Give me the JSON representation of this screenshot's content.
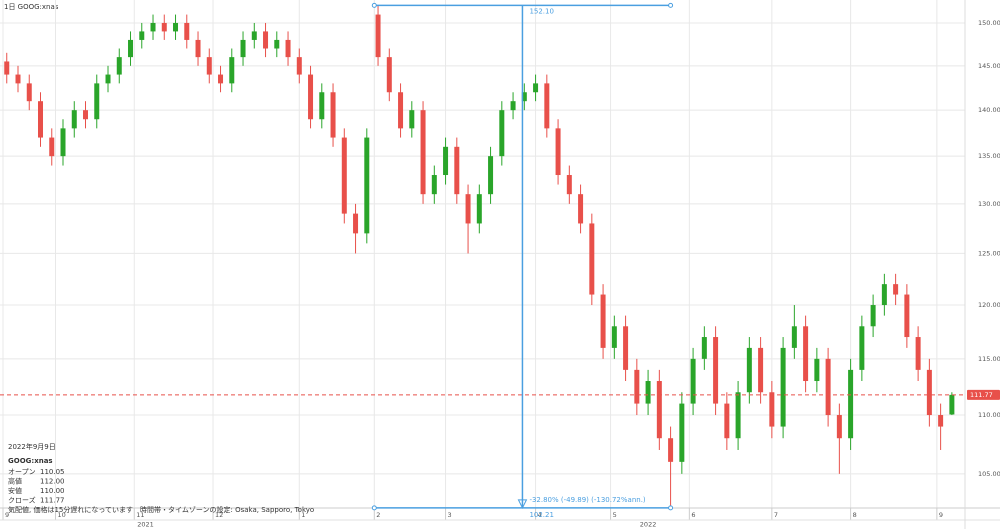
{
  "header": {
    "title": "1日 GOOG:xnas"
  },
  "info": {
    "date": "2022年9月9日",
    "symbol": "GOOG:xnas",
    "rows": [
      [
        "オープン",
        "110.05"
      ],
      [
        "高値",
        "112.00"
      ],
      [
        "安値",
        "110.00"
      ],
      [
        "クローズ",
        "111.77"
      ]
    ],
    "note": "気配値, 価格は15分遅れになっています　時間帯・タイムゾーンの設定: Osaka, Sapporo, Tokyo"
  },
  "chart_data": {
    "type": "candlestick",
    "log_scale": true,
    "grid": true,
    "up_color": "#2aa52a",
    "down_color": "#e8504a",
    "x": [
      1,
      4,
      7,
      10,
      13,
      16,
      19,
      22,
      25,
      28,
      31,
      34,
      37,
      40,
      43,
      46,
      49,
      52,
      55,
      58,
      61,
      64,
      67,
      70,
      73,
      76,
      79,
      82,
      85,
      88,
      91,
      94,
      97,
      100,
      103,
      106,
      109,
      112,
      115,
      118,
      121,
      124,
      127,
      130,
      133,
      136,
      139,
      142,
      145,
      148,
      151,
      154,
      157,
      160,
      163,
      166,
      169,
      172,
      175,
      178,
      181,
      184,
      187,
      190,
      193,
      196,
      199,
      202,
      205,
      208,
      211,
      214,
      217,
      220,
      223,
      226,
      229,
      232,
      235,
      238,
      241,
      244,
      247,
      250,
      253
    ],
    "open": [
      145.5,
      144,
      143,
      141,
      137,
      135,
      138,
      140,
      139,
      143,
      144,
      146,
      148,
      149,
      150,
      149,
      150,
      148,
      146,
      144,
      143,
      146,
      148,
      149,
      147,
      148,
      146,
      144,
      139,
      142,
      137,
      129,
      127,
      151,
      146,
      142,
      138,
      140,
      131,
      133,
      136,
      131,
      128,
      131,
      135,
      140,
      141,
      142,
      143,
      138,
      133,
      131,
      128,
      121,
      116,
      118,
      114,
      111,
      113,
      108,
      106,
      111,
      115,
      117,
      111,
      108,
      112,
      116,
      112,
      109,
      116,
      118,
      113,
      115,
      110,
      108,
      114,
      118,
      120,
      122,
      121,
      117,
      114,
      110,
      110.05
    ],
    "high": [
      146.5,
      145,
      144,
      142,
      138,
      139,
      141,
      141,
      144,
      145,
      147,
      149,
      150,
      151,
      151,
      151,
      151,
      149,
      147,
      145,
      147,
      149,
      150,
      150,
      149,
      149,
      147,
      145,
      143,
      143,
      138,
      130,
      138,
      152.1,
      147,
      143,
      141,
      141,
      134,
      137,
      137,
      132,
      132,
      136,
      141,
      142,
      143,
      144,
      144,
      139,
      134,
      132,
      129,
      122,
      119,
      119,
      115,
      114,
      114,
      109,
      112,
      116,
      118,
      118,
      112,
      113,
      117,
      117,
      113,
      117,
      120,
      119,
      116,
      116,
      111,
      115,
      119,
      121,
      123,
      123,
      122,
      118,
      115,
      111,
      112
    ],
    "low": [
      143,
      142,
      140,
      136,
      134,
      134,
      137,
      138,
      138,
      142,
      143,
      145,
      147,
      148,
      148,
      148,
      147,
      145,
      143,
      142,
      142,
      145,
      147,
      146,
      146,
      145,
      143,
      138,
      138,
      136,
      128,
      125,
      126,
      145,
      141,
      137,
      137,
      130,
      130,
      132,
      130,
      125,
      127,
      130,
      134,
      139,
      140,
      141,
      137,
      132,
      130,
      127,
      120,
      115,
      115,
      113,
      110,
      110,
      107,
      102.21,
      105,
      110,
      114,
      110,
      107,
      107,
      111,
      111,
      108,
      108,
      115,
      112,
      112,
      109,
      105,
      107,
      113,
      117,
      119,
      120,
      116,
      113,
      109,
      107,
      110
    ],
    "close": [
      144,
      143,
      141,
      137,
      135,
      138,
      140,
      139,
      143,
      144,
      146,
      148,
      149,
      150,
      149,
      150,
      148,
      146,
      144,
      143,
      146,
      148,
      149,
      147,
      148,
      146,
      144,
      139,
      142,
      137,
      129,
      127,
      137,
      146,
      142,
      138,
      140,
      131,
      133,
      136,
      131,
      128,
      131,
      135,
      140,
      141,
      142,
      143,
      138,
      133,
      131,
      128,
      121,
      116,
      118,
      114,
      111,
      113,
      108,
      106,
      111,
      115,
      117,
      111,
      108,
      112,
      116,
      112,
      109,
      116,
      118,
      113,
      115,
      110,
      108,
      114,
      118,
      120,
      122,
      121,
      117,
      114,
      110,
      109,
      111.77
    ],
    "xlim": [
      -0.8,
      256.5
    ],
    "ylim": [
      102.2,
      152.75
    ],
    "yticks": [
      {
        "value": 105,
        "label": "105.00"
      },
      {
        "value": 110,
        "label": "110.00"
      },
      {
        "value": 115,
        "label": "115.00"
      },
      {
        "value": 120,
        "label": "120.00"
      },
      {
        "value": 125,
        "label": "125.00"
      },
      {
        "value": 130,
        "label": "130.00"
      },
      {
        "value": 135,
        "label": "135.00"
      },
      {
        "value": 140,
        "label": "140.00"
      },
      {
        "value": 145,
        "label": "145.00"
      },
      {
        "value": 150,
        "label": "150.00"
      }
    ],
    "xticks": [
      {
        "value": 0,
        "label": "9"
      },
      {
        "value": 14,
        "label": "10"
      },
      {
        "value": 35,
        "label": "11"
      },
      {
        "value": 56,
        "label": "12"
      },
      {
        "value": 79,
        "label": "1"
      },
      {
        "value": 99,
        "label": "2"
      },
      {
        "value": 118,
        "label": "3"
      },
      {
        "value": 142,
        "label": "4"
      },
      {
        "value": 162,
        "label": "5"
      },
      {
        "value": 183,
        "label": "6"
      },
      {
        "value": 205,
        "label": "7"
      },
      {
        "value": 226,
        "label": "8"
      },
      {
        "value": 249,
        "label": "9"
      }
    ],
    "year_ticks": [
      {
        "value": 38,
        "label": "2021"
      },
      {
        "value": 172,
        "label": "2022"
      }
    ],
    "last_price": 111.77,
    "last_price_color": "#e8504a",
    "measure": {
      "x": [
        99,
        178
      ],
      "start": {
        "value": 152.1,
        "label": "152.10"
      },
      "end": {
        "value": 102.21,
        "label": "102.21"
      },
      "change": "-32.80% (-49.89) (-130.72%ann.)",
      "color": "#4a9fe0"
    }
  }
}
